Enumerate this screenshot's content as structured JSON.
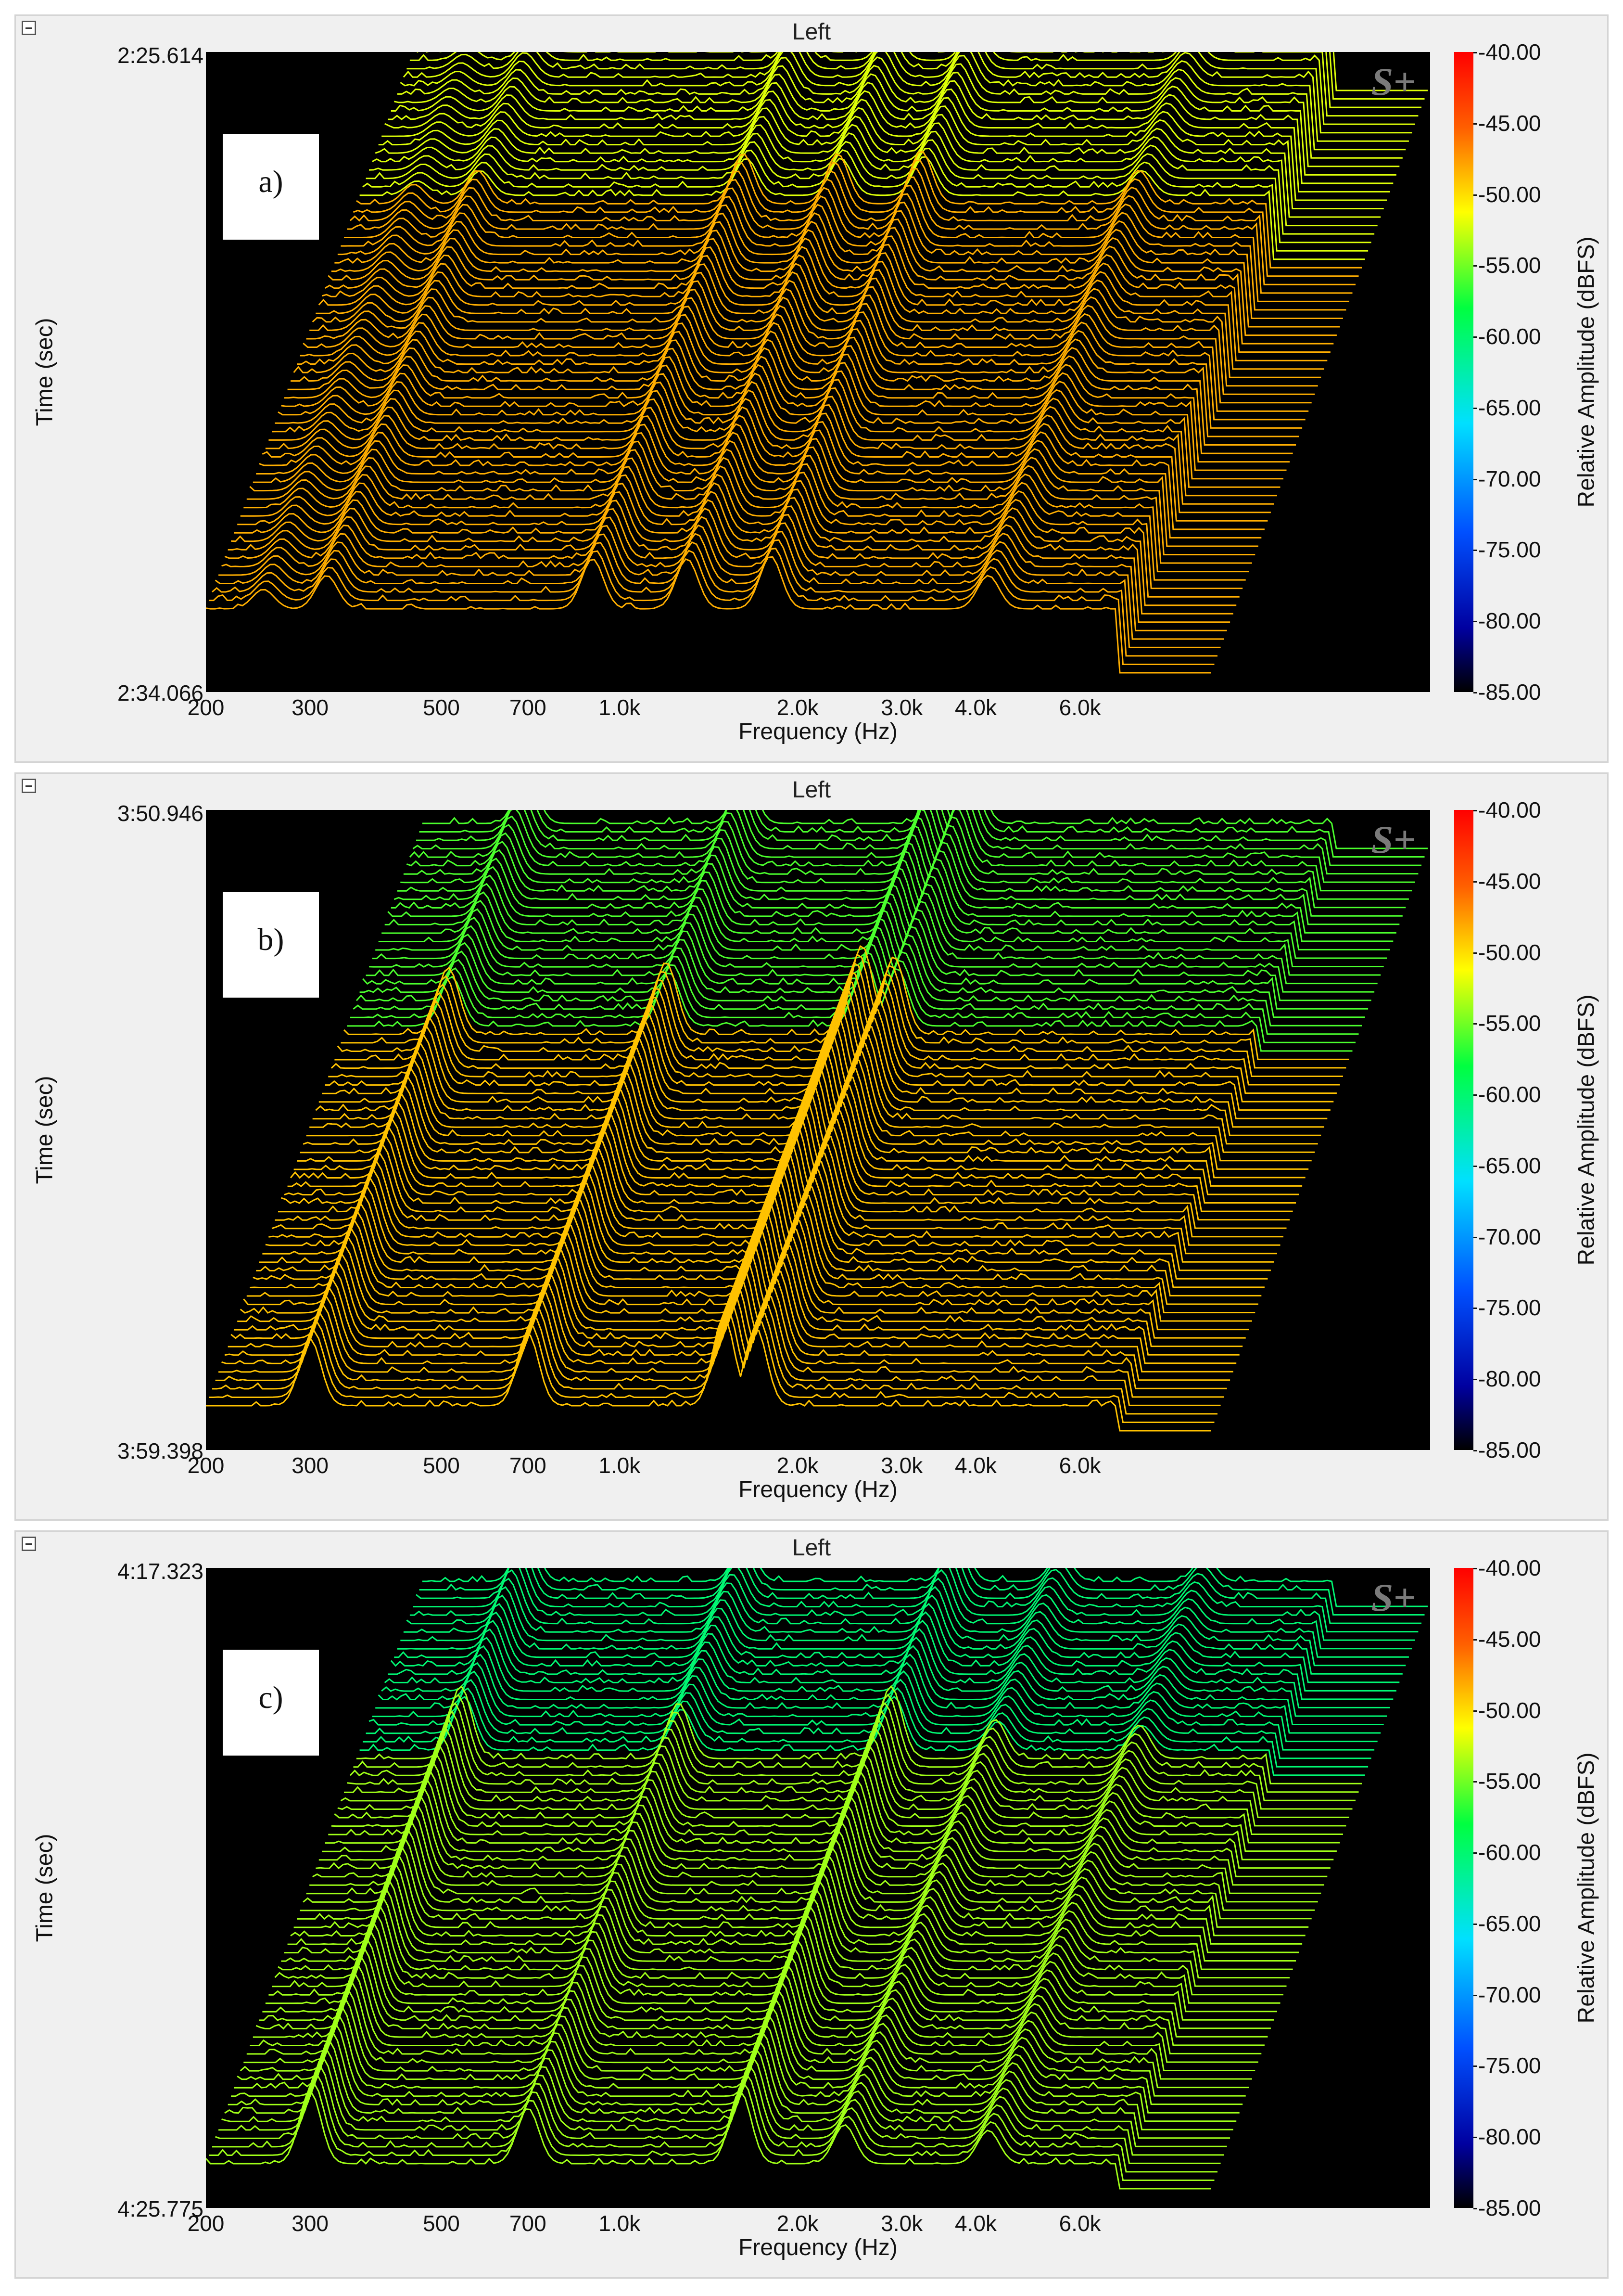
{
  "panels": [
    {
      "tag": "a)",
      "channel": "Left",
      "time_start": "2:25.614",
      "time_end": "2:34.066",
      "logo": "S+",
      "colors": {
        "background": "#000000"
      }
    },
    {
      "tag": "b)",
      "channel": "Left",
      "time_start": "3:50.946",
      "time_end": "3:59.398",
      "logo": "S+",
      "colors": {
        "background": "#000000"
      }
    },
    {
      "tag": "c)",
      "channel": "Left",
      "time_start": "4:17.323",
      "time_end": "4:25.775",
      "logo": "S+",
      "colors": {
        "background": "#000000"
      }
    }
  ],
  "axes": {
    "ylabel": "Time (sec)",
    "xlabel": "Frequency (Hz)",
    "x_ticks": [
      "200",
      "300",
      "500",
      "700",
      "1.0k",
      "2.0k",
      "3.0k",
      "4.0k",
      "6.0k"
    ],
    "colorbar_label": "Relative Amplitude (dBFS)",
    "colorbar_ticks": [
      "-40.00",
      "-45.00",
      "-50.00",
      "-55.00",
      "-60.00",
      "-65.00",
      "-70.00",
      "-75.00",
      "-80.00",
      "-85.00"
    ]
  },
  "chart_data": [
    {
      "type": "waterfall",
      "panel": "a)",
      "x_scale": "log",
      "x_range_hz": [
        200,
        10000
      ],
      "x_tick_values_hz": [
        200,
        300,
        500,
        700,
        1000,
        2000,
        3000,
        4000,
        6000
      ],
      "time_range": [
        "2:25.614",
        "2:34.066"
      ],
      "z_range_dbfs": [
        -85,
        -40
      ],
      "colormap": [
        "#000000",
        "#0000a0",
        "#0050ff",
        "#00e0ff",
        "#00ff40",
        "#ffff00",
        "#ff6000",
        "#ff0000"
      ],
      "ridges": [
        {
          "freq_hz": 320,
          "level_dbfs": -50
        },
        {
          "freq_hz": 250,
          "level_dbfs": -55
        },
        {
          "freq_hz": 900,
          "level_dbfs": -44
        },
        {
          "freq_hz": 1300,
          "level_dbfs": -44
        },
        {
          "freq_hz": 1800,
          "level_dbfs": -43
        },
        {
          "freq_hz": 4200,
          "level_dbfs": -50
        }
      ],
      "floor_dbfs": -62,
      "onset_fraction": 0.3
    },
    {
      "type": "waterfall",
      "panel": "b)",
      "x_scale": "log",
      "x_range_hz": [
        200,
        10000
      ],
      "x_tick_values_hz": [
        200,
        300,
        500,
        700,
        1000,
        2000,
        3000,
        4000,
        6000
      ],
      "time_range": [
        "3:50.946",
        "3:59.398"
      ],
      "z_range_dbfs": [
        -85,
        -40
      ],
      "colormap": [
        "#000000",
        "#0000a0",
        "#0050ff",
        "#00e0ff",
        "#00ff40",
        "#ffff00",
        "#ff6000",
        "#ff0000"
      ],
      "ridges": [
        {
          "freq_hz": 300,
          "level_dbfs": -52
        },
        {
          "freq_hz": 700,
          "level_dbfs": -50
        },
        {
          "freq_hz": 1500,
          "level_dbfs": -44
        },
        {
          "freq_hz": 1700,
          "level_dbfs": -48
        }
      ],
      "floor_dbfs": -76,
      "onset_fraction": 0.35
    },
    {
      "type": "waterfall",
      "panel": "c)",
      "x_scale": "log",
      "x_range_hz": [
        200,
        10000
      ],
      "x_tick_values_hz": [
        200,
        300,
        500,
        700,
        1000,
        2000,
        3000,
        4000,
        6000
      ],
      "time_range": [
        "4:17.323",
        "4:25.775"
      ],
      "z_range_dbfs": [
        -85,
        -40
      ],
      "colormap": [
        "#000000",
        "#0000a0",
        "#0050ff",
        "#00e0ff",
        "#00ff40",
        "#ffff00",
        "#ff6000",
        "#ff0000"
      ],
      "ridges": [
        {
          "freq_hz": 300,
          "level_dbfs": -50
        },
        {
          "freq_hz": 700,
          "level_dbfs": -56
        },
        {
          "freq_hz": 1600,
          "level_dbfs": -50
        },
        {
          "freq_hz": 2400,
          "level_dbfs": -62
        },
        {
          "freq_hz": 4200,
          "level_dbfs": -64
        }
      ],
      "floor_dbfs": -76,
      "onset_fraction": 0.3
    }
  ]
}
